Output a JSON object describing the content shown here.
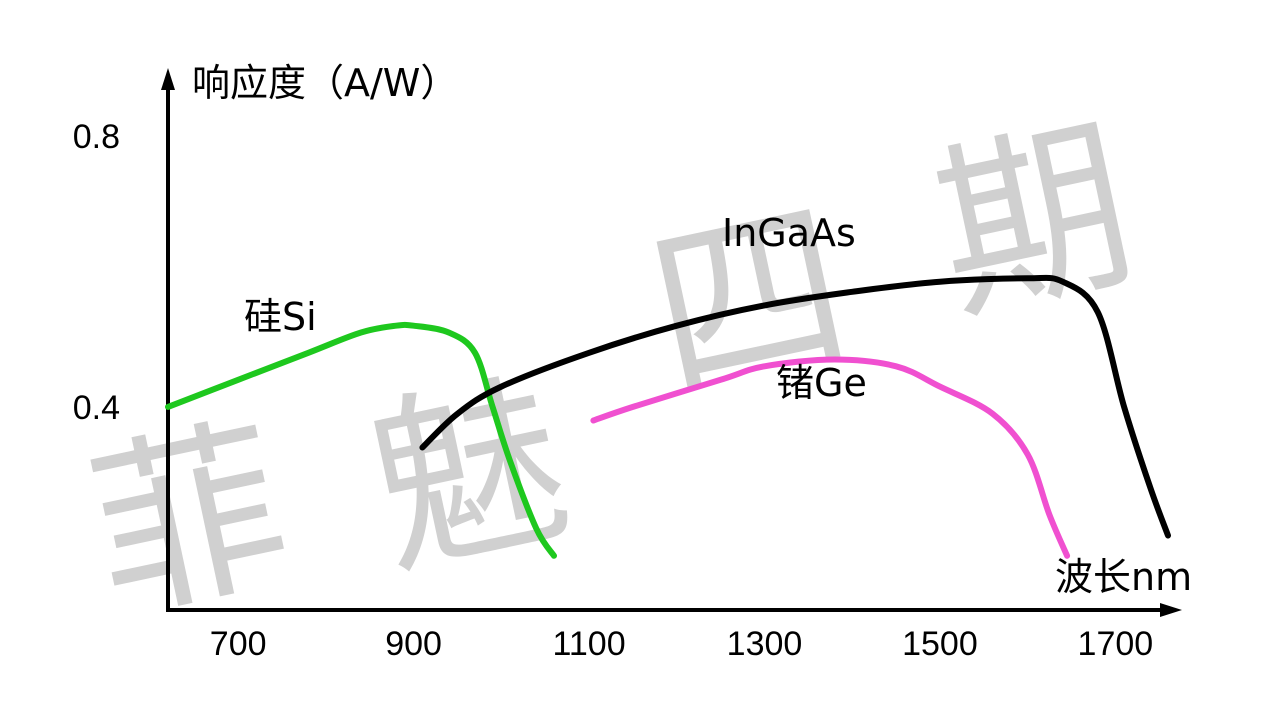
{
  "watermark": [
    "菲",
    "魅",
    "四",
    "期"
  ],
  "chart_data": {
    "type": "line",
    "title": "",
    "xlabel": "波长nm",
    "ylabel": "响应度（A/W）",
    "xlim": [
      620,
      1760
    ],
    "ylim": [
      0.1,
      0.88
    ],
    "x_ticks": [
      700,
      900,
      1100,
      1300,
      1500,
      1700
    ],
    "y_ticks": [
      0.4,
      0.8
    ],
    "x_tick_labels": [
      "700",
      "900",
      "1100",
      "1300",
      "1500",
      "1700"
    ],
    "y_tick_labels": [
      "0.4",
      "0.8"
    ],
    "grid": false,
    "series": [
      {
        "name": "硅Si",
        "color": "#1ec81e",
        "points": [
          [
            620,
            0.4
          ],
          [
            700,
            0.44
          ],
          [
            780,
            0.48
          ],
          [
            840,
            0.51
          ],
          [
            880,
            0.52
          ],
          [
            900,
            0.52
          ],
          [
            940,
            0.51
          ],
          [
            970,
            0.48
          ],
          [
            990,
            0.4
          ],
          [
            1010,
            0.32
          ],
          [
            1040,
            0.22
          ],
          [
            1060,
            0.18
          ]
        ]
      },
      {
        "name": "InGaAs",
        "color": "#000000",
        "points": [
          [
            910,
            0.34
          ],
          [
            950,
            0.39
          ],
          [
            1000,
            0.43
          ],
          [
            1100,
            0.48
          ],
          [
            1200,
            0.52
          ],
          [
            1300,
            0.55
          ],
          [
            1400,
            0.57
          ],
          [
            1500,
            0.585
          ],
          [
            1600,
            0.59
          ],
          [
            1640,
            0.585
          ],
          [
            1680,
            0.54
          ],
          [
            1710,
            0.4
          ],
          [
            1740,
            0.28
          ],
          [
            1760,
            0.21
          ]
        ]
      },
      {
        "name": "锗Ge",
        "color": "#f050d0",
        "points": [
          [
            1105,
            0.38
          ],
          [
            1150,
            0.4
          ],
          [
            1250,
            0.44
          ],
          [
            1300,
            0.46
          ],
          [
            1380,
            0.47
          ],
          [
            1450,
            0.46
          ],
          [
            1500,
            0.43
          ],
          [
            1560,
            0.39
          ],
          [
            1600,
            0.33
          ],
          [
            1625,
            0.24
          ],
          [
            1645,
            0.18
          ]
        ]
      }
    ]
  }
}
